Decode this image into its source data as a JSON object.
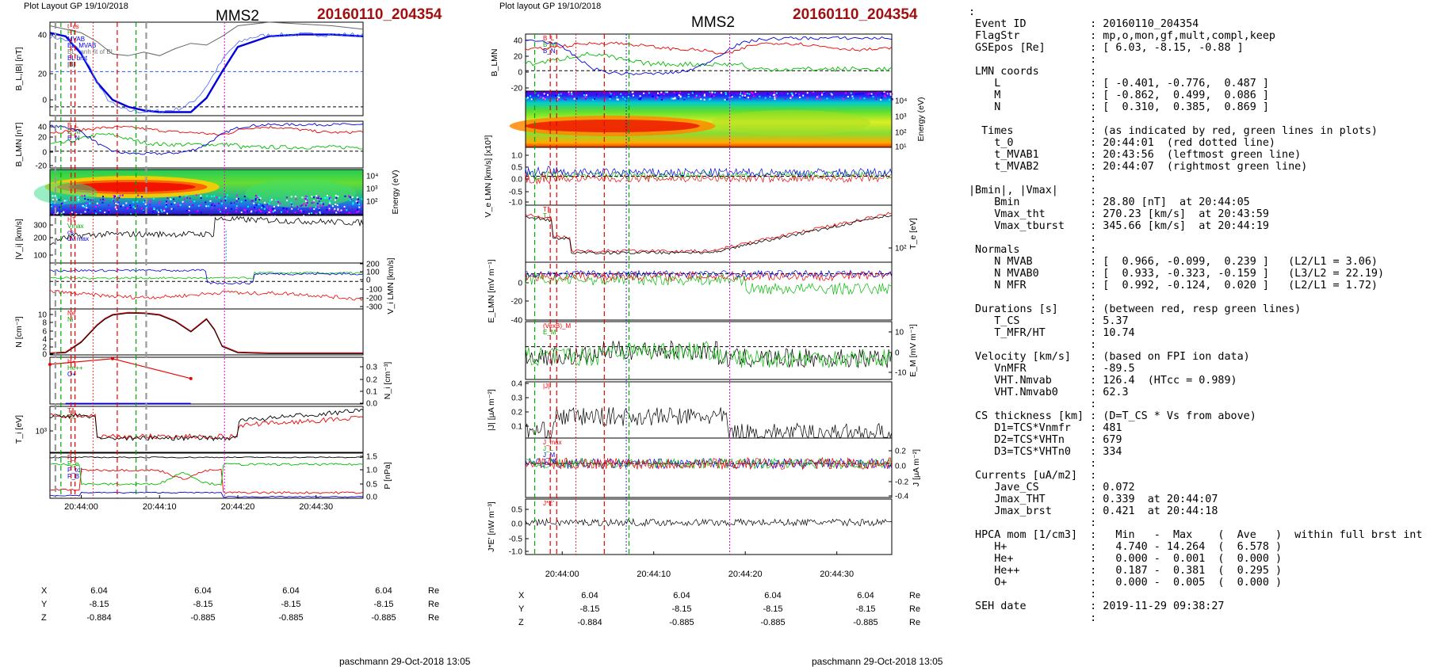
{
  "left_header": {
    "layout": "Plot Layout GP 19/10/2018",
    "spacecraft": "MMS2",
    "event": "20160110_204354"
  },
  "mid_header": {
    "layout": "Plot layout GP 19/10/2018",
    "spacecraft": "MMS2",
    "event": "20160110_204354"
  },
  "time_axis": {
    "ticks": [
      "20:44:00",
      "20:44:10",
      "20:44:20",
      "20:44:30"
    ]
  },
  "coords_left": {
    "rows": [
      {
        "label": "X",
        "values": [
          "6.04",
          "6.04",
          "6.04",
          "6.04"
        ],
        "unit": "Re"
      },
      {
        "label": "Y",
        "values": [
          "-8.15",
          "-8.15",
          "-8.15",
          "-8.15"
        ],
        "unit": "Re"
      },
      {
        "label": "Z",
        "values": [
          "-0.884",
          "-0.885",
          "-0.885",
          "-0.885"
        ],
        "unit": "Re"
      }
    ]
  },
  "coords_mid": {
    "rows": [
      {
        "label": "X",
        "values": [
          "6.04",
          "6.04",
          "6.04",
          "6.04"
        ],
        "unit": "Re"
      },
      {
        "label": "Y",
        "values": [
          "-8.15",
          "-8.15",
          "-8.15",
          "-8.15"
        ],
        "unit": "Re"
      },
      {
        "label": "Z",
        "values": [
          "-0.884",
          "-0.885",
          "-0.885",
          "-0.885"
        ],
        "unit": "Re"
      }
    ]
  },
  "footer_left": "paschmann 29-Oct-2018 13:05",
  "footer_mid": "paschmann 29-Oct-2018 13:05",
  "colors": {
    "title_red": "#a01010",
    "bl": "#0000dd",
    "bm": "#00bb00",
    "bn": "#ee0000",
    "magenta": "#dd00dd"
  },
  "chart_data": [
    {
      "type": "line",
      "panel": "left",
      "x_range_seconds_after_20_44_00": [
        -4,
        36
      ],
      "markers": {
        "red_dashed": [
          "20:43:57",
          "20:43:58",
          "20:44:05"
        ],
        "green_dashed": [
          "20:43:56",
          "20:44:07"
        ],
        "gray_dashed": [
          "20:43:55",
          "20:44:08"
        ],
        "magenta_dotted": [
          "20:44:18"
        ]
      },
      "subplots": [
        {
          "ylabel": "B_L,|B| [nT]",
          "yticks": [
            "40",
            "20",
            "0"
          ],
          "ylim": [
            -5,
            48
          ],
          "legend": [
            "t_cs",
            "HT",
            "MVAB",
            "BL_MVAB",
            "BL_tanh fit of BL",
            "BL brst",
            "|B|"
          ],
          "series": [
            {
              "name": "BL brst",
              "x": [
                -4,
                -2,
                0,
                2,
                4,
                6,
                8,
                10,
                12,
                14,
                16,
                18,
                20,
                24,
                28,
                32,
                36
              ],
              "values": [
                42,
                40,
                30,
                14,
                4,
                0,
                -2,
                -3,
                -3,
                -3,
                5,
                20,
                34,
                40,
                41,
                41,
                40
              ]
            },
            {
              "name": "|B|",
              "x": [
                -4,
                -2,
                0,
                2,
                4,
                6,
                8,
                10,
                12,
                14,
                16,
                18,
                20,
                24,
                28,
                32,
                36
              ],
              "values": [
                46,
                44,
                42,
                37,
                30,
                29,
                31,
                29,
                33,
                36,
                35,
                40,
                46,
                48,
                47,
                46,
                44
              ]
            }
          ]
        },
        {
          "ylabel": "B_LMN [nT]",
          "yticks": [
            "40",
            "20",
            "0",
            "-20"
          ],
          "ylim": [
            -25,
            45
          ],
          "legend": [
            "B_L",
            "B_M",
            "B_N"
          ]
        },
        {
          "ylabel": "Energy (eV)",
          "type": "heatmap",
          "yticks": [
            "10⁴",
            "10³",
            "10²"
          ]
        },
        {
          "ylabel": "|V_i| [km/s]",
          "yticks": [
            "300",
            "200",
            "100"
          ],
          "ylim": [
            60,
            340
          ],
          "legend": [
            "HT",
            "Vmax",
            "cs",
            "dV max"
          ]
        },
        {
          "ylabel": "V_i LMN [km/s]",
          "yticks": [
            "200",
            "100",
            "0",
            "-100",
            "-200",
            "-300"
          ],
          "ylim": [
            -330,
            220
          ]
        },
        {
          "ylabel": "N [cm⁻³]",
          "yticks": [
            "10",
            "8",
            "6",
            "4",
            "2",
            "0"
          ],
          "ylim": [
            0,
            11
          ],
          "legend": [
            "Ne",
            "Ni"
          ],
          "series": [
            {
              "name": "Ni",
              "x": [
                -4,
                -2,
                0,
                1,
                2,
                3,
                4,
                6,
                8,
                10,
                12,
                14,
                16,
                17,
                18,
                20,
                24,
                28,
                32,
                36
              ],
              "values": [
                0.3,
                0.5,
                3,
                5,
                7,
                8.5,
                9.5,
                10,
                9.9,
                9.5,
                8,
                5.5,
                8.5,
                6,
                2,
                0.5,
                0.3,
                0.3,
                0.3,
                0.3
              ]
            }
          ]
        },
        {
          "ylabel": "N_i [cm⁻³]",
          "yticks": [
            "0.3",
            "0.2",
            "0.1",
            "0.0"
          ],
          "ylim": [
            0,
            0.33
          ],
          "legend": [
            "H+",
            "He++",
            "O+"
          ],
          "series": [
            {
              "name": "He++",
              "x": [
                -4,
                4,
                14
              ],
              "values": [
                0.28,
                0.36,
                0.18
              ]
            }
          ]
        },
        {
          "ylabel": "T_i [eV]",
          "yticks": [
            "10³"
          ],
          "legend": [
            "T∥",
            "T⊥"
          ]
        },
        {
          "ylabel": "P [nPa]",
          "yticks": [
            "1.5",
            "1.0",
            "0.5",
            "0.0"
          ],
          "ylim": [
            0,
            1.6
          ],
          "legend": [
            "P_i",
            "P_e",
            "P_tot",
            "P_B"
          ]
        }
      ]
    },
    {
      "type": "line",
      "panel": "middle",
      "subplots": [
        {
          "ylabel": "B_LMN",
          "yticks": [
            "40",
            "20",
            "0",
            "-20"
          ],
          "ylim": [
            -25,
            45
          ],
          "legend": [
            "B_L",
            "B_M",
            "B_N"
          ]
        },
        {
          "ylabel": "Energy (eV)",
          "type": "heatmap",
          "yticks": [
            "10⁴",
            "10³",
            "10²",
            "10¹"
          ]
        },
        {
          "ylabel": "V_e LMN [km/s] [x10³]",
          "yticks": [
            "1.0",
            "0.5",
            "0.0",
            "-0.5",
            "-1.0"
          ],
          "ylim": [
            -1.2,
            1.2
          ]
        },
        {
          "ylabel": "T_e [eV]",
          "yticks": [
            "10²"
          ],
          "legend": [
            "T∥",
            "T⊥"
          ]
        },
        {
          "ylabel": "E_LMN [mV m⁻¹]",
          "yticks": [
            "0",
            "-20",
            "-40"
          ],
          "ylim": [
            -40,
            10
          ]
        },
        {
          "ylabel": "E_M [mV m⁻¹]",
          "yticks": [
            "10",
            "0",
            "-10"
          ],
          "ylim": [
            -15,
            15
          ],
          "legend": [
            "(VexB)_M",
            "E_M"
          ]
        },
        {
          "ylabel": "|J| [µA m⁻²]",
          "yticks": [
            "0.4",
            "0.3",
            "0.2",
            "0.1"
          ],
          "ylim": [
            0,
            0.42
          ],
          "legend": [
            "|J|"
          ]
        },
        {
          "ylabel": "J [µA m⁻²]",
          "yticks": [
            "0.2",
            "0.0",
            "-0.2",
            "-0.4"
          ],
          "ylim": [
            -0.4,
            0.3
          ],
          "legend": [
            "J_max",
            "J_L",
            "J_M",
            "J_N"
          ]
        },
        {
          "ylabel": "J*E' [nW m⁻³]",
          "yticks": [
            "0.5",
            "0.0",
            "-0.5",
            "-1.0"
          ],
          "ylim": [
            -1.1,
            0.8
          ],
          "legend": [
            "J*E'"
          ]
        }
      ]
    }
  ],
  "info_lines": [
    ":",
    " Event ID          : 20160110_204354",
    " FlagStr           : mp,o,mon,gf,mult,compl,keep",
    " GSEpos [Re]       : [ 6.03, -8.15, -0.88 ]",
    "                   :",
    " LMN coords        :",
    "    L              : [ -0.401, -0.776,  0.487 ]",
    "    M              : [ -0.862,  0.499,  0.086 ]",
    "    N              : [  0.310,  0.385,  0.869 ]",
    "                   :",
    "  Times            : (as indicated by red, green lines in plots)",
    "    t_0            : 20:44:01  (red dotted line)",
    "    t_MVAB1        : 20:43:56  (leftmost green line)",
    "    t_MVAB2        : 20:44:07  (rightmost green line)",
    "                   :",
    "|Bmin|, |Vmax|     :",
    "    Bmin           : 28.80 [nT]  at 20:44:05",
    "    Vmax_tht       : 270.23 [km/s]  at 20:43:59",
    "    Vmax_tburst    : 345.66 [km/s]  at 20:44:19",
    "                   :",
    " Normals           :",
    "    N MVAB         : [  0.966, -0.099,  0.239 ]   (L2/L1 = 3.06)",
    "    N MVAB0        : [  0.933, -0.323, -0.159 ]   (L3/L2 = 22.19)",
    "    N MFR          : [  0.992, -0.124,  0.020 ]   (L2/L1 = 1.72)",
    "                   :",
    " Durations [s]     : (between red, resp green lines)",
    "    T_CS           : 5.37",
    "    T_MFR/HT       : 10.74",
    "                   :",
    " Velocity [km/s]   : (based on FPI ion data)",
    "    VnMFR          : -89.5",
    "    VHT.Nmvab      : 126.4  (HTcc = 0.989)",
    "    VHT.Nmvab0     : 62.3",
    "                   :",
    " CS thickness [km] : (D=T_CS * Vs from above)",
    "    D1=TCS*Vnmfr   : 481",
    "    D2=TCS*VHTn    : 679",
    "    D3=TCS*VHTn0   : 334",
    "                   :",
    " Currents [uA/m2]  :",
    "    Jave_CS        : 0.072",
    "    Jmax_THT       : 0.339  at 20:44:07",
    "    Jmax_brst      : 0.421  at 20:44:18",
    "                   :",
    " HPCA mom [1/cm3]  :   Min   -  Max    (  Ave   )  within full brst int",
    "    H+             :   4.740 - 14.264  (  6.578 )",
    "    He+            :   0.000 -  0.001  (  0.000 )",
    "    He++           :   0.187 -  0.381  (  0.295 )",
    "    O+             :   0.000 -  0.005  (  0.000 )",
    "                   :",
    " SEH date          : 2019-11-29 09:38:27",
    "                   :"
  ]
}
